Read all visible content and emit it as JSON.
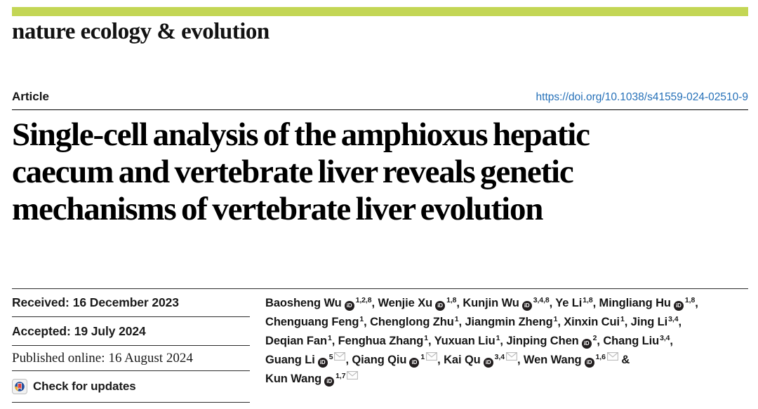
{
  "masthead": {
    "journal_name": "nature ecology & evolution",
    "accent_color": "#c3d655"
  },
  "article_header": {
    "type_label": "Article",
    "doi": "https://doi.org/10.1038/s41559-024-02510-9",
    "doi_color": "#2570b8"
  },
  "title_lines": [
    "Single-cell analysis of the amphioxus hepatic",
    "caecum and vertebrate liver reveals genetic",
    "mechanisms of vertebrate liver evolution"
  ],
  "dates": {
    "received": {
      "label": "Received:",
      "value": "16 December 2023"
    },
    "accepted": {
      "label": "Accepted:",
      "value": "19 July 2024"
    },
    "published": {
      "label": "Published online:",
      "value": "16 August 2024"
    }
  },
  "check_for_updates": {
    "label": "Check for updates",
    "icon": "crossmark-icon"
  },
  "icons": {
    "orcid": "orcid-icon",
    "orcid_glyph": "iD",
    "mail": "mail-icon"
  },
  "authors": {
    "lines": [
      [
        {
          "name": "Baosheng Wu",
          "orcid": true,
          "sup": "1,2,8"
        },
        {
          "name": "Wenjie Xu",
          "orcid": true,
          "sup": "1,8"
        },
        {
          "name": "Kunjin Wu",
          "orcid": true,
          "sup": "3,4,8"
        },
        {
          "name": "Ye Li",
          "orcid": false,
          "sup": "1,8"
        },
        {
          "name": "Mingliang Hu",
          "orcid": true,
          "sup": "1,8"
        }
      ],
      [
        {
          "name": "Chenguang Feng",
          "orcid": false,
          "sup": "1"
        },
        {
          "name": "Chenglong Zhu",
          "orcid": false,
          "sup": "1"
        },
        {
          "name": "Jiangmin Zheng",
          "orcid": false,
          "sup": "1"
        },
        {
          "name": "Xinxin Cui",
          "orcid": false,
          "sup": "1"
        },
        {
          "name": "Jing Li",
          "orcid": false,
          "sup": "3,4"
        }
      ],
      [
        {
          "name": "Deqian Fan",
          "orcid": false,
          "sup": "1"
        },
        {
          "name": "Fenghua Zhang",
          "orcid": false,
          "sup": "1"
        },
        {
          "name": "Yuxuan Liu",
          "orcid": false,
          "sup": "1"
        },
        {
          "name": "Jinping Chen",
          "orcid": true,
          "sup": "2"
        },
        {
          "name": "Chang Liu",
          "orcid": false,
          "sup": "3,4"
        }
      ],
      [
        {
          "name": "Guang Li",
          "orcid": true,
          "sup": "5",
          "mail": true
        },
        {
          "name": "Qiang Qiu",
          "orcid": true,
          "sup": "1",
          "mail": true
        },
        {
          "name": "Kai Qu",
          "orcid": true,
          "sup": "3,4",
          "mail": true
        },
        {
          "name": "Wen Wang",
          "orcid": true,
          "sup": "1,6",
          "mail": true
        }
      ],
      [
        {
          "name": "Kun Wang",
          "orcid": true,
          "sup": "1,7",
          "mail": true
        }
      ]
    ],
    "line_endings": [
      ",",
      ",",
      ",",
      " &",
      ""
    ]
  }
}
